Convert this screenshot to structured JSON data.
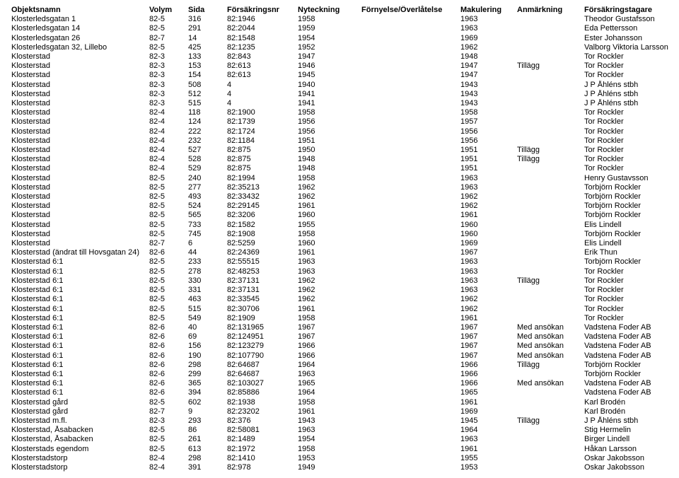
{
  "columns": [
    "Objektsnamn",
    "Volym",
    "Sida",
    "Försäkringsnr",
    "Nyteckning",
    "Förnyelse/Överlåtelse",
    "Makulering",
    "Anmärkning",
    "Försäkringstagare"
  ],
  "rows": [
    [
      "Klosterledsgatan 1",
      "82-5",
      "316",
      "82:1946",
      "1958",
      "",
      "1963",
      "",
      "Theodor Gustafsson"
    ],
    [
      "Klosterledsgatan 14",
      "82-5",
      "291",
      "82:2044",
      "1959",
      "",
      "1963",
      "",
      "Eda Pettersson"
    ],
    [
      "Klosterledsgatan 26",
      "82-7",
      "14",
      "82:1548",
      "1954",
      "",
      "1969",
      "",
      "Ester Johansson"
    ],
    [
      "Klosterledsgatan 32, Lillebo",
      "82-5",
      "425",
      "82:1235",
      "1952",
      "",
      "1962",
      "",
      "Valborg Viktoria Larsson"
    ],
    [
      "Klosterstad",
      "82-3",
      "133",
      "82:843",
      "1947",
      "",
      "1948",
      "",
      "Tor Rockler"
    ],
    [
      "Klosterstad",
      "82-3",
      "153",
      "82:613",
      "1946",
      "",
      "1947",
      "Tillägg",
      "Tor Rockler"
    ],
    [
      "Klosterstad",
      "82-3",
      "154",
      "82:613",
      "1945",
      "",
      "1947",
      "",
      "Tor Rockler"
    ],
    [
      "Klosterstad",
      "82-3",
      "508",
      "4",
      "1940",
      "",
      "1943",
      "",
      "J P Åhléns stbh"
    ],
    [
      "Klosterstad",
      "82-3",
      "512",
      "4",
      "1941",
      "",
      "1943",
      "",
      "J P Åhléns stbh"
    ],
    [
      "Klosterstad",
      "82-3",
      "515",
      "4",
      "1941",
      "",
      "1943",
      "",
      "J P Åhléns stbh"
    ],
    [
      "Klosterstad",
      "82-4",
      "118",
      "82:1900",
      "1958",
      "",
      "1958",
      "",
      "Tor Rockler"
    ],
    [
      "Klosterstad",
      "82-4",
      "124",
      "82:1739",
      "1956",
      "",
      "1957",
      "",
      "Tor Rockler"
    ],
    [
      "Klosterstad",
      "82-4",
      "222",
      "82:1724",
      "1956",
      "",
      "1956",
      "",
      "Tor Rockler"
    ],
    [
      "Klosterstad",
      "82-4",
      "232",
      "82:1184",
      "1951",
      "",
      "1956",
      "",
      "Tor Rockler"
    ],
    [
      "Klosterstad",
      "82-4",
      "527",
      "82:875",
      "1950",
      "",
      "1951",
      "Tillägg",
      "Tor Rockler"
    ],
    [
      "Klosterstad",
      "82-4",
      "528",
      "82:875",
      "1948",
      "",
      "1951",
      "Tillägg",
      "Tor Rockler"
    ],
    [
      "Klosterstad",
      "82-4",
      "529",
      "82:875",
      "1948",
      "",
      "1951",
      "",
      "Tor Rockler"
    ],
    [
      "Klosterstad",
      "82-5",
      "240",
      "82:1994",
      "1958",
      "",
      "1963",
      "",
      "Henry Gustavsson"
    ],
    [
      "Klosterstad",
      "82-5",
      "277",
      "82:35213",
      "1962",
      "",
      "1963",
      "",
      "Torbjörn Rockler"
    ],
    [
      "Klosterstad",
      "82-5",
      "493",
      "82:33432",
      "1962",
      "",
      "1962",
      "",
      "Torbjörn Rockler"
    ],
    [
      "Klosterstad",
      "82-5",
      "524",
      "82:29145",
      "1961",
      "",
      "1962",
      "",
      "Torbjörn Rockler"
    ],
    [
      "Klosterstad",
      "82-5",
      "565",
      "82:3206",
      "1960",
      "",
      "1961",
      "",
      "Torbjörn Rockler"
    ],
    [
      "Klosterstad",
      "82-5",
      "733",
      "82:1582",
      "1955",
      "",
      "1960",
      "",
      "Elis Lindell"
    ],
    [
      "Klosterstad",
      "82-5",
      "745",
      "82:1908",
      "1958",
      "",
      "1960",
      "",
      "Torbjörn Rockler"
    ],
    [
      "Klosterstad",
      "82-7",
      "6",
      "82:5259",
      "1960",
      "",
      "1969",
      "",
      "Elis Lindell"
    ],
    [
      "Klosterstad (ändrat till Hovsgatan 24)",
      "82-6",
      "44",
      "82:24369",
      "1961",
      "",
      "1967",
      "",
      "Erik Thun"
    ],
    [
      "Klosterstad 6:1",
      "82-5",
      "233",
      "82:55515",
      "1963",
      "",
      "1963",
      "",
      "Torbjörn Rockler"
    ],
    [
      "Klosterstad 6:1",
      "82-5",
      "278",
      "82:48253",
      "1963",
      "",
      "1963",
      "",
      "Tor Rockler"
    ],
    [
      "Klosterstad 6:1",
      "82-5",
      "330",
      "82:37131",
      "1962",
      "",
      "1963",
      "Tillägg",
      "Tor Rockler"
    ],
    [
      "Klosterstad 6:1",
      "82-5",
      "331",
      "82:37131",
      "1962",
      "",
      "1963",
      "",
      "Tor Rockler"
    ],
    [
      "Klosterstad 6:1",
      "82-5",
      "463",
      "82:33545",
      "1962",
      "",
      "1962",
      "",
      "Tor Rockler"
    ],
    [
      "Klosterstad 6:1",
      "82-5",
      "515",
      "82:30706",
      "1961",
      "",
      "1962",
      "",
      "Tor Rockler"
    ],
    [
      "Klosterstad 6:1",
      "82-5",
      "549",
      "82:1909",
      "1958",
      "",
      "1961",
      "",
      "Tor Rockler"
    ],
    [
      "Klosterstad 6:1",
      "82-6",
      "40",
      "82:131965",
      "1967",
      "",
      "1967",
      "Med ansökan",
      "Vadstena Foder AB"
    ],
    [
      "Klosterstad 6:1",
      "82-6",
      "69",
      "82:124951",
      "1967",
      "",
      "1967",
      "Med ansökan",
      "Vadstena Foder AB"
    ],
    [
      "Klosterstad 6:1",
      "82-6",
      "156",
      "82:123279",
      "1966",
      "",
      "1967",
      "Med ansökan",
      "Vadstena Foder AB"
    ],
    [
      "Klosterstad 6:1",
      "82-6",
      "190",
      "82:107790",
      "1966",
      "",
      "1967",
      "Med ansökan",
      "Vadstena Foder AB"
    ],
    [
      "Klosterstad 6:1",
      "82-6",
      "298",
      "82:64687",
      "1964",
      "",
      "1966",
      "Tillägg",
      "Torbjörn Rockler"
    ],
    [
      "Klosterstad 6:1",
      "82-6",
      "299",
      "82:64687",
      "1963",
      "",
      "1966",
      "",
      "Torbjörn Rockler"
    ],
    [
      "Klosterstad 6:1",
      "82-6",
      "365",
      "82:103027",
      "1965",
      "",
      "1966",
      "Med ansökan",
      "Vadstena Foder AB"
    ],
    [
      "Klosterstad 6:1",
      "82-6",
      "394",
      "82:85886",
      "1964",
      "",
      "1965",
      "",
      "Vadstena Foder AB"
    ],
    [
      "Klosterstad gård",
      "82-5",
      "602",
      "82:1938",
      "1958",
      "",
      "1961",
      "",
      "Karl Brodén"
    ],
    [
      "Klosterstad gård",
      "82-7",
      "9",
      "82:23202",
      "1961",
      "",
      "1969",
      "",
      "Karl Brodén"
    ],
    [
      "Klosterstad m.fl.",
      "82-3",
      "293",
      "82:376",
      "1943",
      "",
      "1945",
      "Tillägg",
      "J P Åhléns stbh"
    ],
    [
      "Klosterstad, Åsabacken",
      "82-5",
      "86",
      "82:58081",
      "1963",
      "",
      "1964",
      "",
      "Stig Hermelin"
    ],
    [
      "Klosterstad, Åsabacken",
      "82-5",
      "261",
      "82:1489",
      "1954",
      "",
      "1963",
      "",
      "Birger Lindell"
    ],
    [
      "Klosterstads egendom",
      "82-5",
      "613",
      "82:1972",
      "1958",
      "",
      "1961",
      "",
      "Håkan Larsson"
    ],
    [
      "Klosterstadstorp",
      "82-4",
      "298",
      "82:1410",
      "1953",
      "",
      "1955",
      "",
      "Oskar Jakobsson"
    ],
    [
      "Klosterstadstorp",
      "82-4",
      "391",
      "82:978",
      "1949",
      "",
      "1953",
      "",
      "Oskar Jakobsson"
    ]
  ]
}
